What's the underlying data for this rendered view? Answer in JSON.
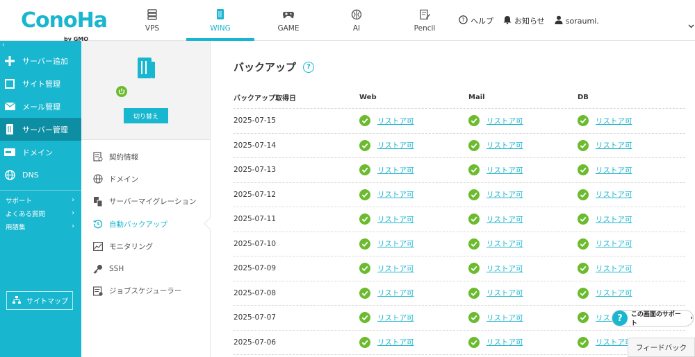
{
  "brand": {
    "logo_text": "ConoHa",
    "logo_by": "by GMO"
  },
  "nav": [
    {
      "label": "VPS",
      "icon": "server-stack-icon"
    },
    {
      "label": "WING",
      "icon": "wing-server-icon",
      "active": true
    },
    {
      "label": "GAME",
      "icon": "gamepad-icon"
    },
    {
      "label": "AI",
      "icon": "ai-brain-icon"
    },
    {
      "label": "Pencil",
      "icon": "pencil-note-icon"
    }
  ],
  "header_right": {
    "help": "ヘルプ",
    "notice": "お知らせ",
    "user": "soraumi."
  },
  "sidebar": {
    "collapse_glyph": "‹",
    "items": [
      {
        "label": "サーバー追加",
        "icon": "plus-icon"
      },
      {
        "label": "サイト管理",
        "icon": "window-icon"
      },
      {
        "label": "メール管理",
        "icon": "mail-icon"
      },
      {
        "label": "サーバー管理",
        "icon": "server-icon",
        "active": true
      },
      {
        "label": "ドメイン",
        "icon": "domain-icon"
      },
      {
        "label": "DNS",
        "icon": "globe-icon"
      }
    ],
    "links": [
      {
        "label": "サポート",
        "arrow": "›"
      },
      {
        "label": "よくある質問",
        "arrow": "›"
      },
      {
        "label": "用語集",
        "arrow": "›"
      }
    ],
    "sitemap": "サイトマップ"
  },
  "subpanel": {
    "switch_button": "切り替え",
    "menu": [
      {
        "label": "契約情報",
        "icon": "contract-icon"
      },
      {
        "label": "ドメイン",
        "icon": "globe-icon"
      },
      {
        "label": "サーバーマイグレーション",
        "icon": "migration-icon"
      },
      {
        "label": "自動バックアップ",
        "icon": "backup-clock-icon",
        "active": true
      },
      {
        "label": "モニタリング",
        "icon": "monitor-chart-icon"
      },
      {
        "label": "SSH",
        "icon": "key-icon"
      },
      {
        "label": "ジョブスケジューラー",
        "icon": "scheduler-icon"
      }
    ]
  },
  "main": {
    "title": "バックアップ",
    "help_glyph": "?",
    "columns": [
      "バックアップ取得日",
      "Web",
      "Mail",
      "DB"
    ],
    "restore_label": "リストア可",
    "rows": [
      "2025-07-15",
      "2025-07-14",
      "2025-07-13",
      "2025-07-12",
      "2025-07-11",
      "2025-07-10",
      "2025-07-09",
      "2025-07-08",
      "2025-07-07",
      "2025-07-06"
    ]
  },
  "support_widget": {
    "q": "?",
    "label": "この画面のサポート",
    "arrow": "›"
  },
  "feedback": "フィードバック",
  "colors": {
    "accent": "#19b6cf",
    "sidebar_active": "#0e8ea3",
    "ok_green": "#6cbb2f"
  }
}
